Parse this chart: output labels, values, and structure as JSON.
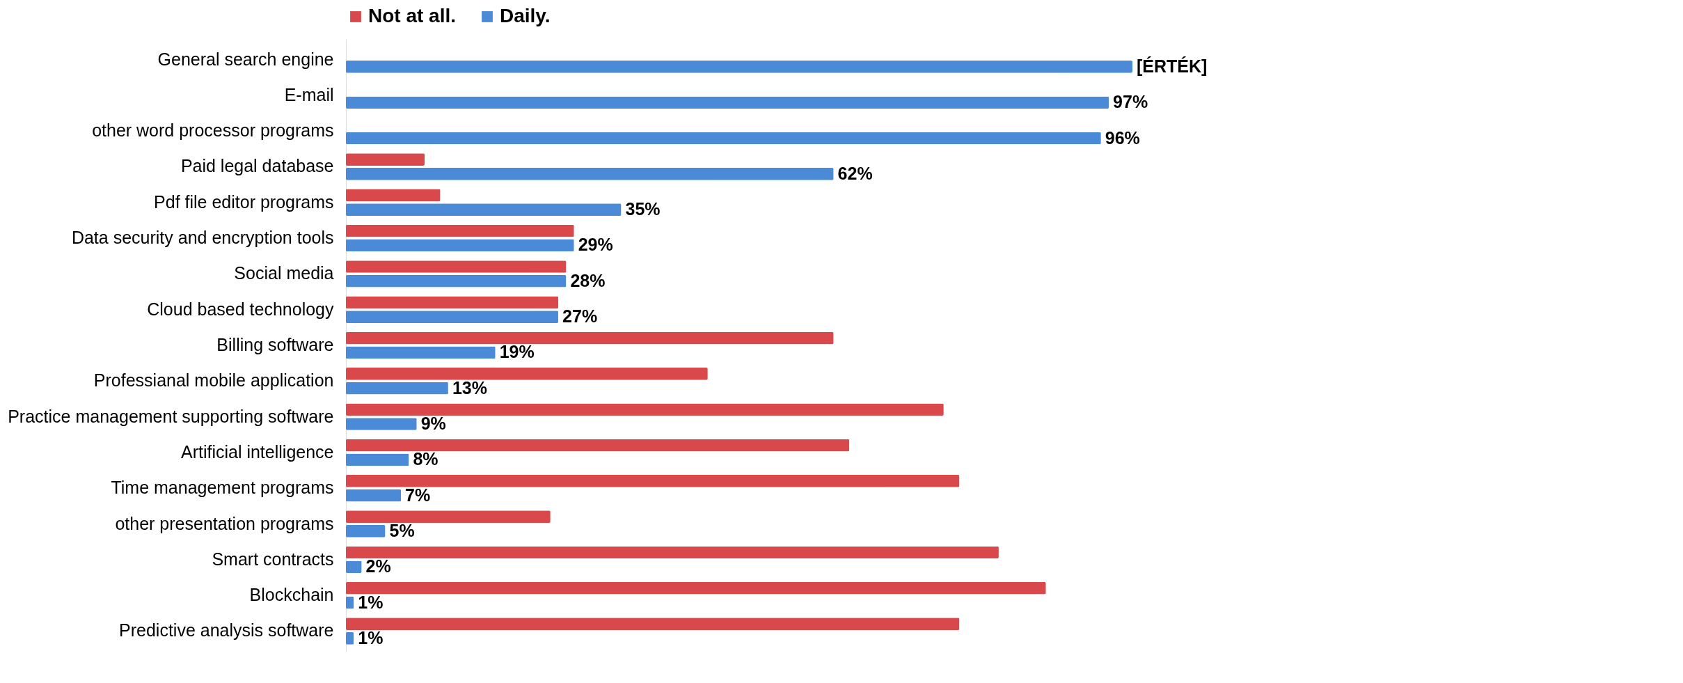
{
  "chart_data": {
    "type": "bar",
    "orientation": "horizontal",
    "legend": "top",
    "categories": [
      "General search engine",
      "E-mail",
      "other word processor programs",
      "Paid legal database",
      "Pdf file editor programs",
      "Data security and encryption tools",
      "Social media",
      "Cloud based technology",
      "Billing software",
      "Professianal mobile application",
      "Practice management supporting software",
      "Artificial intelligence",
      "Time management programs",
      "other presentation programs",
      "Smart contracts",
      "Blockchain",
      "Predictive analysis software"
    ],
    "series": [
      {
        "name": "Not at all.",
        "color": "#d9494b",
        "values": [
          null,
          null,
          null,
          10,
          12,
          29,
          28,
          27,
          62,
          46,
          76,
          64,
          78,
          26,
          83,
          89,
          78
        ]
      },
      {
        "name": "Daily.",
        "color": "#4a8ad6",
        "values": [
          100,
          97,
          96,
          62,
          35,
          29,
          28,
          27,
          19,
          13,
          9,
          8,
          7,
          5,
          2,
          1,
          1
        ],
        "value_labels": [
          "[ÉRTÉK]",
          "97%",
          "96%",
          "62%",
          "35%",
          "29%",
          "28%",
          "27%",
          "19%",
          "13%",
          "9%",
          "8%",
          "7%",
          "5%",
          "2%",
          "1%",
          "1%"
        ]
      }
    ]
  }
}
